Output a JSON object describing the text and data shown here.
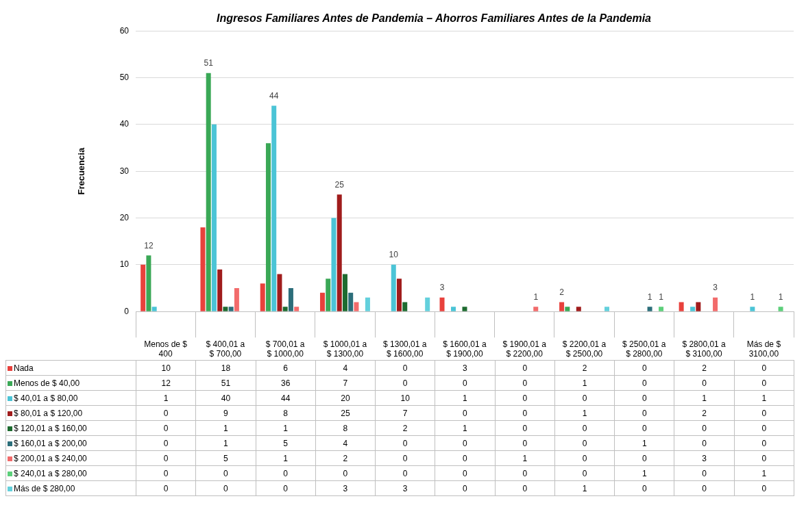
{
  "chart_data": {
    "type": "bar",
    "title": "Ingresos Familiares Antes de Pandemia – Ahorros Familiares Antes de la Pandemia",
    "ylabel": "Frecuencia",
    "categories": [
      "Menos de $ 400",
      "$ 400,01 a $ 700,00",
      "$ 700,01 a $ 1000,00",
      "$ 1000,01 a $ 1300,00",
      "$ 1300,01 a $ 1600,00",
      "$ 1600,01 a $ 1900,00",
      "$ 1900,01 a $ 2200,00",
      "$ 2200,01 a $ 2500,00",
      "$ 2500,01 a $ 2800,00",
      "$ 2800,01 a $ 3100,00",
      "Más de $ 3100,00"
    ],
    "series": [
      {
        "name": "Nada",
        "color": "#e8413c",
        "values": [
          10,
          18,
          6,
          4,
          0,
          3,
          0,
          2,
          0,
          2,
          0
        ],
        "value_labels": [
          "10",
          "18",
          "6",
          "4",
          "0",
          "3",
          "0",
          "2",
          "0",
          "2",
          "0"
        ]
      },
      {
        "name": "Menos de $ 40,00",
        "color": "#3aa856",
        "values": [
          12,
          51,
          36,
          7,
          0,
          0,
          0,
          1,
          0,
          0,
          0
        ],
        "value_labels": [
          "12",
          "51",
          "36",
          "7",
          "0",
          "0",
          "0",
          "1",
          "0",
          "0",
          "0"
        ]
      },
      {
        "name": "$ 40,01 a $ 80,00",
        "color": "#4bc4d6",
        "values": [
          1,
          40,
          44,
          20,
          10,
          1,
          0,
          0,
          0,
          1,
          1
        ],
        "value_labels": [
          "1",
          "40",
          "44",
          "20",
          "10",
          "1",
          "0",
          "0",
          "0",
          "1",
          "1"
        ]
      },
      {
        "name": "$ 80,01 a $ 120,00",
        "color": "#a01c1c",
        "values": [
          0,
          9,
          8,
          25,
          7,
          0,
          0,
          1,
          0,
          2,
          0
        ],
        "value_labels": [
          "0",
          "9",
          "8",
          "25",
          "7",
          "0",
          "0",
          "1",
          "0",
          "2",
          "0"
        ]
      },
      {
        "name": "$ 120,01 a $ 160,00",
        "color": "#1e6b30",
        "values": [
          0,
          1,
          1,
          8,
          2,
          1,
          0,
          0,
          0,
          0,
          0
        ],
        "value_labels": [
          "0",
          "1",
          "1",
          "8",
          "2",
          "1",
          "0",
          "0",
          "0",
          "0",
          "0"
        ]
      },
      {
        "name": "$ 160,01 a $ 200,00",
        "color": "#2c6e7a",
        "values": [
          0,
          1,
          5,
          4,
          0,
          0,
          0,
          0,
          1,
          0,
          0
        ],
        "value_labels": [
          "0",
          "1",
          "5",
          "4",
          "0",
          "0",
          "0",
          "0",
          "1",
          "0",
          "0"
        ]
      },
      {
        "name": "$ 200,01 a $ 240,00",
        "color": "#f26b6b",
        "values": [
          0,
          5,
          1,
          2,
          0,
          0,
          1,
          0,
          0,
          3,
          0
        ],
        "value_labels": [
          "0",
          "5",
          "1",
          "2",
          "0",
          "0",
          "1",
          "0",
          "0",
          "3",
          "0"
        ]
      },
      {
        "name": "$ 240,01 a $ 280,00",
        "color": "#5ccf7a",
        "values": [
          0,
          0,
          0,
          0,
          0,
          0,
          0,
          0,
          1,
          0,
          1
        ],
        "value_labels": [
          "0",
          "0",
          "0",
          "0",
          "0",
          "0",
          "0",
          "0",
          "1",
          "0",
          "1"
        ]
      },
      {
        "name": "Más de $ 280,00",
        "color": "#63d0dc",
        "values": [
          0,
          0,
          0,
          3,
          3,
          0,
          0,
          1,
          0,
          0,
          0
        ],
        "value_labels": [
          "0",
          "0",
          "0",
          "3",
          "3",
          "0",
          "0",
          "1",
          "0",
          "0",
          "0"
        ]
      }
    ],
    "ylim": [
      0,
      60
    ],
    "yticks": [
      0,
      10,
      20,
      30,
      40,
      50,
      60
    ],
    "grid": "y",
    "legend": "bottom",
    "data_labels": true
  }
}
